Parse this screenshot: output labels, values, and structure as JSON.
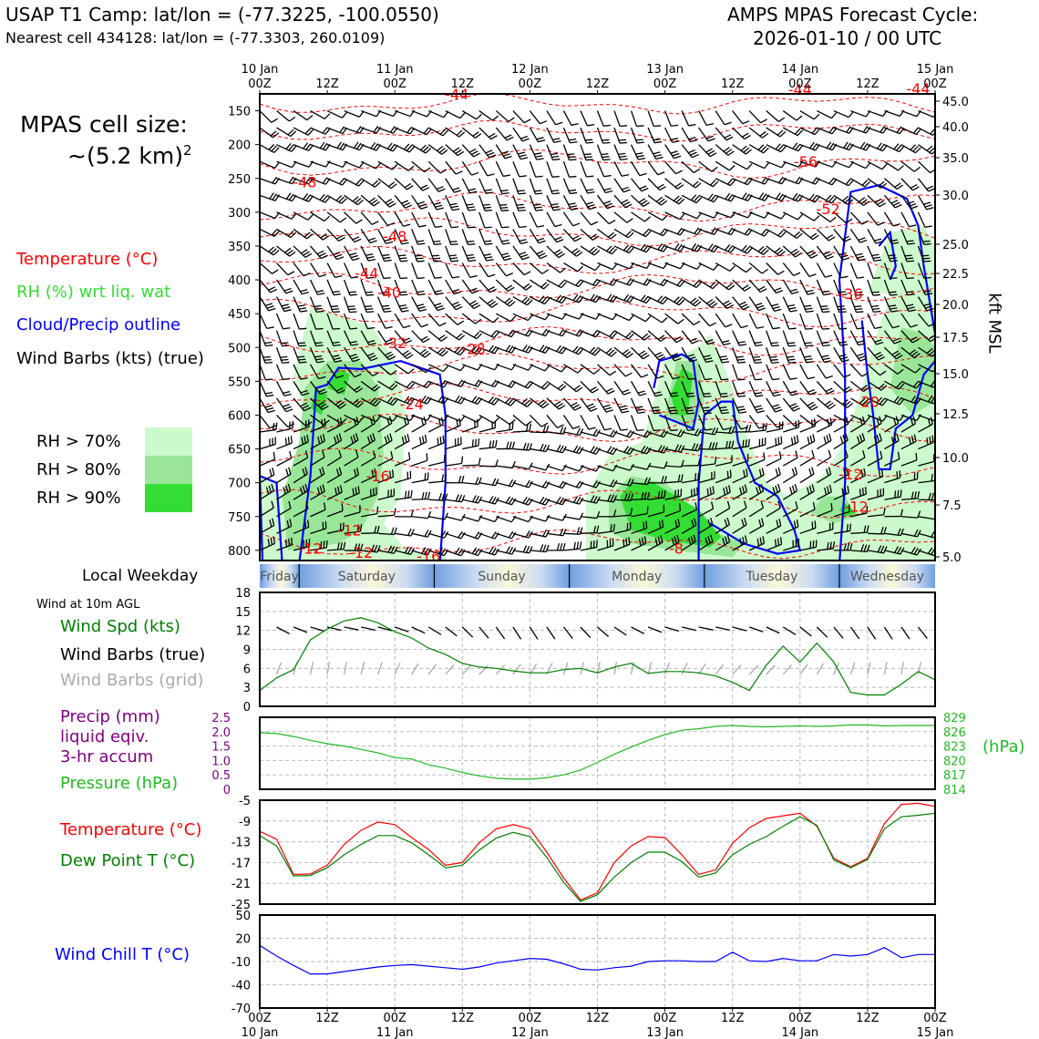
{
  "header": {
    "title_line1": "USAP T1 Camp: lat/lon = (-77.3225, -100.0550)",
    "title_line2": "Nearest cell 434128: lat/lon = (-77.3303, 260.0109)",
    "cycle_line1": "AMPS MPAS Forecast Cycle:",
    "cycle_line2": "2026-01-10 / 00 UTC"
  },
  "cell_size": {
    "line1": "MPAS cell size:",
    "line2": "~(5.2 km)",
    "sup": "2"
  },
  "legend": {
    "temperature": "Temperature (°C)",
    "rh": "RH (%) wrt liq. wat",
    "cloud": "Cloud/Precip outline",
    "wind": "Wind Barbs (kts) (true)",
    "rh_levels": [
      "RH > 70%",
      "RH > 80%",
      "RH > 90%"
    ]
  },
  "colors": {
    "temp": "#ff0000",
    "rh70": "#ccfacc",
    "rh80": "#99e699",
    "rh90": "#33dd33",
    "cloud": "#0000ff",
    "wind_spd": "#008000",
    "pressure": "#22bb22",
    "precip": "#800080",
    "dew": "#008000",
    "wind_chill": "#0000ff",
    "grid_barb": "#aaaaaa"
  },
  "top_axis": {
    "ticks": [
      {
        "l1": "10 Jan",
        "l2": "00Z"
      },
      {
        "l1": "",
        "l2": "12Z"
      },
      {
        "l1": "11 Jan",
        "l2": "00Z"
      },
      {
        "l1": "",
        "l2": "12Z"
      },
      {
        "l1": "12 Jan",
        "l2": "00Z"
      },
      {
        "l1": "",
        "l2": "12Z"
      },
      {
        "l1": "13 Jan",
        "l2": "00Z"
      },
      {
        "l1": "",
        "l2": "12Z"
      },
      {
        "l1": "14 Jan",
        "l2": "00Z"
      },
      {
        "l1": "",
        "l2": "12Z"
      },
      {
        "l1": "15 Jan",
        "l2": "00Z"
      }
    ]
  },
  "bottom_axis": {
    "ticks": [
      {
        "l1": "00Z",
        "l2": "10 Jan"
      },
      {
        "l1": "12Z",
        "l2": ""
      },
      {
        "l1": "00Z",
        "l2": "11 Jan"
      },
      {
        "l1": "12Z",
        "l2": ""
      },
      {
        "l1": "00Z",
        "l2": "12 Jan"
      },
      {
        "l1": "12Z",
        "l2": ""
      },
      {
        "l1": "00Z",
        "l2": "13 Jan"
      },
      {
        "l1": "12Z",
        "l2": ""
      },
      {
        "l1": "00Z",
        "l2": "14 Jan"
      },
      {
        "l1": "12Z",
        "l2": ""
      },
      {
        "l1": "00Z",
        "l2": "15 Jan"
      }
    ]
  },
  "weekday": {
    "label": "Local Weekday",
    "days": [
      "Friday",
      "Saturday",
      "Sunday",
      "Monday",
      "Tuesday",
      "Wednesday"
    ]
  },
  "side_labels": {
    "wind10m": "Wind at 10m AGL",
    "wind_spd": "Wind Spd (kts)",
    "wind_true": "Wind Barbs (true)",
    "wind_grid": "Wind Barbs (grid)",
    "precip1": "Precip (mm)",
    "precip2": "liquid eqiv.",
    "precip3": "3-hr accum",
    "pressure": "Pressure (hPa)",
    "hpa_unit": "(hPa)",
    "temp": "Temperature (°C)",
    "dew": "Dew Point T (°C)",
    "wind_chill": "Wind Chill T (°C)",
    "kft": "kft MSL"
  },
  "chart_data": [
    {
      "type": "heatmap",
      "name": "time-height cross section",
      "x_unit": "forecast hour (0 = 2026-01-10 00Z)",
      "xlim": [
        0,
        120
      ],
      "y_pressure_ticks": [
        150,
        200,
        250,
        300,
        350,
        400,
        450,
        500,
        550,
        600,
        650,
        700,
        750,
        800
      ],
      "y_kft_ticks": [
        45.0,
        40.0,
        35.0,
        30.0,
        25.0,
        22.5,
        20.0,
        17.5,
        15.0,
        12.5,
        10.0,
        7.5,
        5.0
      ],
      "ylim_hpa": [
        125,
        815
      ],
      "temperature_isotherms": [
        -8,
        -12,
        -16,
        -20,
        -24,
        -28,
        -32,
        -36,
        -40,
        -44,
        -48,
        -52,
        -56
      ],
      "temperature_labels": [
        {
          "x": 35,
          "p": 125,
          "text": "-44"
        },
        {
          "x": 96,
          "p": 118,
          "text": "-44"
        },
        {
          "x": 117,
          "p": 117,
          "text": "-44"
        },
        {
          "x": 97,
          "p": 225,
          "text": "-56"
        },
        {
          "x": 8,
          "p": 255,
          "text": "-48"
        },
        {
          "x": 101,
          "p": 295,
          "text": "-52"
        },
        {
          "x": 24,
          "p": 335,
          "text": "-48"
        },
        {
          "x": 19,
          "p": 390,
          "text": "-44"
        },
        {
          "x": 23,
          "p": 418,
          "text": "-40"
        },
        {
          "x": 105,
          "p": 420,
          "text": "-36"
        },
        {
          "x": 24,
          "p": 493,
          "text": "-32"
        },
        {
          "x": 38,
          "p": 502,
          "text": "-28"
        },
        {
          "x": 27,
          "p": 583,
          "text": "-24"
        },
        {
          "x": 108,
          "p": 580,
          "text": "-20"
        },
        {
          "x": 21,
          "p": 690,
          "text": "-16"
        },
        {
          "x": 105,
          "p": 687,
          "text": "-12"
        },
        {
          "x": 106,
          "p": 735,
          "text": "-12"
        },
        {
          "x": 16,
          "p": 770,
          "text": "-12"
        },
        {
          "x": 9,
          "p": 797,
          "text": "-12"
        },
        {
          "x": 18,
          "p": 803,
          "text": "-12"
        },
        {
          "x": 30,
          "p": 808,
          "text": "-16"
        },
        {
          "x": 74,
          "p": 797,
          "text": "-8"
        }
      ]
    },
    {
      "type": "line",
      "name": "wind speed 10m",
      "ylim": [
        0,
        18
      ],
      "yticks": [
        0,
        3,
        6,
        9,
        12,
        15,
        18
      ],
      "x": [
        0,
        3,
        6,
        9,
        12,
        15,
        18,
        21,
        24,
        27,
        30,
        33,
        36,
        39,
        42,
        45,
        48,
        51,
        54,
        57,
        60,
        63,
        66,
        69,
        72,
        75,
        78,
        81,
        84,
        87,
        90,
        93,
        96,
        99,
        102,
        105,
        108,
        111,
        114,
        117,
        120
      ],
      "values": [
        2.5,
        4.5,
        5.8,
        10.5,
        12.2,
        13.5,
        14,
        13.2,
        11.8,
        10.8,
        9.2,
        8.2,
        6.8,
        6.2,
        6,
        5.6,
        5.3,
        5.3,
        5.8,
        6,
        5.3,
        6.2,
        6.8,
        5.2,
        5.5,
        5.5,
        5.3,
        4.8,
        3.8,
        2.5,
        6.5,
        9.5,
        7,
        10,
        7,
        2.2,
        1.8,
        1.8,
        3.5,
        5.5,
        4.2
      ]
    },
    {
      "type": "line",
      "name": "pressure",
      "ylim": [
        814,
        829
      ],
      "yticks_right": [
        814,
        817,
        820,
        823,
        826,
        829
      ],
      "precip_yticks": [
        "0",
        "0.5",
        "1.0",
        "1.5",
        "2.0",
        "2.5"
      ],
      "x": [
        0,
        3,
        6,
        9,
        12,
        15,
        18,
        21,
        24,
        27,
        30,
        33,
        36,
        39,
        42,
        45,
        48,
        51,
        54,
        57,
        60,
        63,
        66,
        69,
        72,
        75,
        78,
        81,
        84,
        87,
        90,
        93,
        96,
        99,
        102,
        105,
        108,
        111,
        114,
        117,
        120
      ],
      "values": [
        825.8,
        825.6,
        825,
        824.2,
        823.5,
        823,
        822.3,
        821.6,
        820.6,
        820.3,
        819.1,
        818.4,
        817.5,
        816.8,
        816.3,
        816.1,
        816.1,
        816.4,
        817,
        818,
        819.6,
        821.3,
        822.8,
        824.2,
        825.4,
        826.3,
        826.6,
        827.1,
        827.3,
        827.1,
        827,
        827.1,
        827.2,
        827.1,
        827.2,
        827.4,
        827.4,
        827.2,
        827.3,
        827.3,
        827.3
      ]
    },
    {
      "type": "line",
      "name": "temperature and dew point",
      "ylim": [
        -25,
        -5
      ],
      "yticks": [
        -5,
        -9,
        -13,
        -17,
        -21,
        -25
      ],
      "x": [
        0,
        3,
        6,
        9,
        12,
        15,
        18,
        21,
        24,
        27,
        30,
        33,
        36,
        39,
        42,
        45,
        48,
        51,
        54,
        57,
        60,
        63,
        66,
        69,
        72,
        75,
        78,
        81,
        84,
        87,
        90,
        93,
        96,
        99,
        102,
        105,
        108,
        111,
        114,
        117,
        120
      ],
      "series": [
        {
          "name": "Temperature",
          "values": [
            -11,
            -12.5,
            -19.3,
            -19.2,
            -17.5,
            -13.5,
            -10.8,
            -9.2,
            -9.7,
            -12.2,
            -14.5,
            -17.5,
            -17,
            -13.2,
            -10.5,
            -9.7,
            -10.5,
            -15,
            -20,
            -24.2,
            -22.8,
            -17,
            -13.8,
            -12,
            -12.2,
            -15.5,
            -19.3,
            -18.4,
            -13.3,
            -10.3,
            -8.5,
            -8,
            -7.5,
            -10,
            -16.2,
            -17.8,
            -16.2,
            -9.5,
            -5.8,
            -5.6,
            -6.2
          ]
        },
        {
          "name": "Dew Point",
          "values": [
            -11.8,
            -13.8,
            -19.6,
            -19.5,
            -18,
            -15.5,
            -13.5,
            -11.8,
            -11.8,
            -13.2,
            -15.5,
            -18,
            -17.5,
            -14.6,
            -12.3,
            -11.2,
            -12,
            -16,
            -20.8,
            -24.5,
            -23.2,
            -19.8,
            -17,
            -15,
            -15,
            -16.8,
            -19.8,
            -19,
            -15.5,
            -13.5,
            -12,
            -10,
            -8.2,
            -9.8,
            -16.5,
            -18,
            -16.4,
            -10.5,
            -8.2,
            -7.9,
            -7.5
          ]
        }
      ]
    },
    {
      "type": "line",
      "name": "wind chill",
      "ylim": [
        -70,
        50
      ],
      "yticks": [
        50,
        20,
        -10,
        -40,
        -70
      ],
      "x": [
        0,
        3,
        6,
        9,
        12,
        15,
        18,
        21,
        24,
        27,
        30,
        33,
        36,
        39,
        42,
        45,
        48,
        51,
        54,
        57,
        60,
        63,
        66,
        69,
        72,
        75,
        78,
        81,
        84,
        87,
        90,
        93,
        96,
        99,
        102,
        105,
        108,
        111,
        114,
        117,
        120
      ],
      "values": [
        11,
        -3,
        -15,
        -26,
        -26,
        -23,
        -20,
        -17,
        -15,
        -14,
        -16,
        -18,
        -20,
        -17,
        -12,
        -9,
        -6,
        -7,
        -13,
        -20,
        -21,
        -18,
        -16,
        -10,
        -9,
        -9,
        -10,
        -10,
        2,
        -9,
        -10,
        -6,
        -9,
        -9,
        -1,
        -3,
        -1,
        8,
        -5,
        -1,
        -1
      ]
    }
  ]
}
